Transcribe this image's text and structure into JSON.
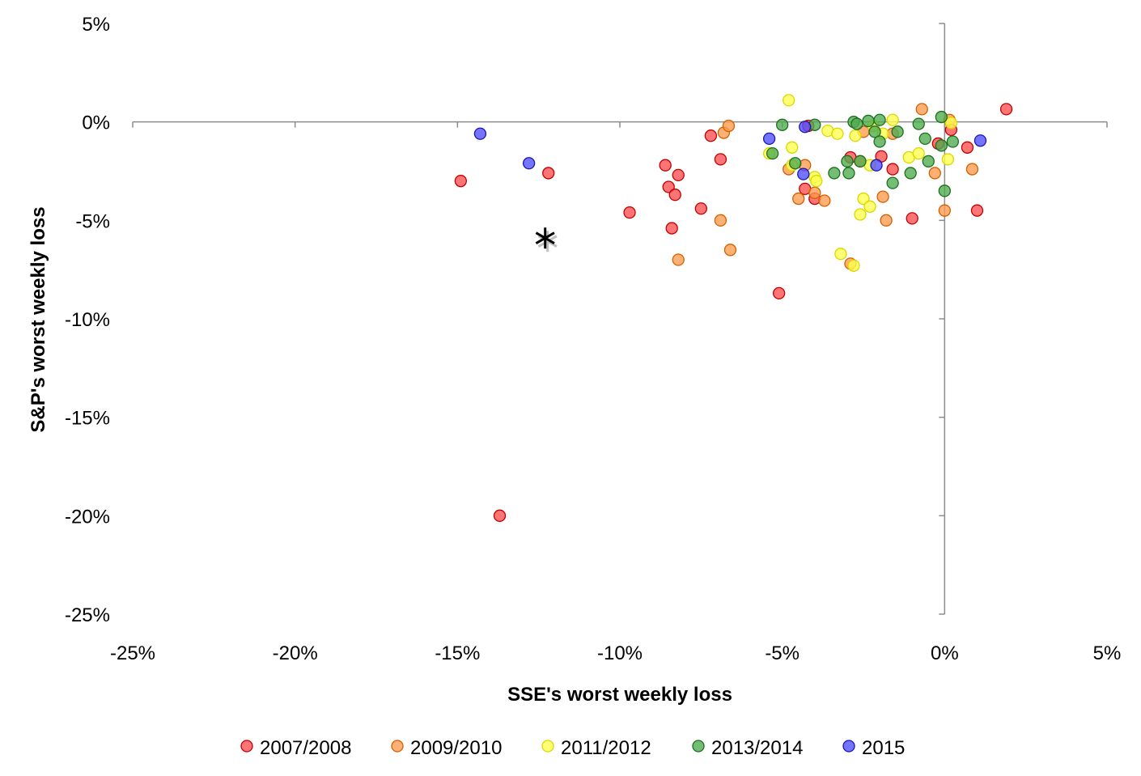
{
  "chart_data": {
    "type": "scatter",
    "title": "",
    "xlabel": "SSE's worst weekly loss",
    "ylabel": "S&P's worst weekly loss",
    "xlim": [
      -25,
      5
    ],
    "ylim": [
      -25,
      5
    ],
    "x_ticks": [
      -25,
      -20,
      -15,
      -10,
      -5,
      0,
      5
    ],
    "y_ticks": [
      5,
      0,
      -5,
      -10,
      -15,
      -20,
      -25
    ],
    "x_tick_labels": [
      "-25%",
      "-20%",
      "-15%",
      "-10%",
      "-5%",
      "0%",
      "5%"
    ],
    "y_tick_labels": [
      "5%",
      "0%",
      "-5%",
      "-10%",
      "-15%",
      "-20%",
      "-25%"
    ],
    "grid": false,
    "legend_position": "bottom",
    "marker": {
      "name": "current-week",
      "x": -12.3,
      "y": -5.9,
      "symbol": "asterisk"
    },
    "series": [
      {
        "name": "2007/2008",
        "color": "#ff4d4d",
        "stroke": "#c00000",
        "points": [
          [
            -14.9,
            -3.0
          ],
          [
            -13.7,
            -20.0
          ],
          [
            -12.2,
            -2.6
          ],
          [
            -9.7,
            -4.6
          ],
          [
            -8.6,
            -2.2
          ],
          [
            -8.5,
            -3.3
          ],
          [
            -8.4,
            -5.4
          ],
          [
            -8.3,
            -3.7
          ],
          [
            -8.2,
            -2.7
          ],
          [
            -7.5,
            -4.4
          ],
          [
            -7.2,
            -0.7
          ],
          [
            -6.9,
            -1.9
          ],
          [
            -5.1,
            -8.7
          ],
          [
            -4.3,
            -3.4
          ],
          [
            -4.2,
            -0.2
          ],
          [
            -4.0,
            -3.9
          ],
          [
            -2.9,
            -1.8
          ],
          [
            -1.95,
            -1.75
          ],
          [
            -1.6,
            -2.4
          ],
          [
            -1.0,
            -4.9
          ],
          [
            -0.2,
            -1.1
          ],
          [
            0.2,
            -0.4
          ],
          [
            0.7,
            -1.3
          ],
          [
            1.0,
            -4.5
          ],
          [
            1.9,
            0.65
          ]
        ]
      },
      {
        "name": "2009/2010",
        "color": "#ff9a4d",
        "stroke": "#d06000",
        "points": [
          [
            -8.2,
            -7.0
          ],
          [
            -6.9,
            -5.0
          ],
          [
            -6.8,
            -0.55
          ],
          [
            -6.65,
            -0.2
          ],
          [
            -6.6,
            -6.5
          ],
          [
            -4.8,
            -2.4
          ],
          [
            -4.5,
            -3.9
          ],
          [
            -4.3,
            -2.2
          ],
          [
            -4.0,
            -3.6
          ],
          [
            -3.7,
            -4.0
          ],
          [
            -2.9,
            -7.2
          ],
          [
            -2.6,
            -2.0
          ],
          [
            -2.5,
            -0.5
          ],
          [
            -1.9,
            -3.8
          ],
          [
            -1.8,
            -5.0
          ],
          [
            -1.6,
            -0.6
          ],
          [
            -0.7,
            0.65
          ],
          [
            -0.3,
            -2.6
          ],
          [
            0.0,
            -4.5
          ],
          [
            0.15,
            0.1
          ],
          [
            0.85,
            -2.4
          ]
        ]
      },
      {
        "name": "2011/2012",
        "color": "#ffff4d",
        "stroke": "#d8d800",
        "points": [
          [
            -4.8,
            1.1
          ],
          [
            -5.4,
            -1.6
          ],
          [
            -4.7,
            -1.3
          ],
          [
            -4.7,
            -2.2
          ],
          [
            -4.0,
            -2.8
          ],
          [
            -3.95,
            -3.0
          ],
          [
            -3.6,
            -0.45
          ],
          [
            -3.3,
            -0.6
          ],
          [
            -3.2,
            -6.7
          ],
          [
            -2.8,
            -7.3
          ],
          [
            -2.75,
            -0.7
          ],
          [
            -2.6,
            -4.7
          ],
          [
            -2.5,
            -3.9
          ],
          [
            -2.3,
            -4.3
          ],
          [
            -2.3,
            -2.2
          ],
          [
            -2.2,
            -0.2
          ],
          [
            -1.9,
            -0.6
          ],
          [
            -1.6,
            0.1
          ],
          [
            -1.1,
            -1.8
          ],
          [
            -0.8,
            -1.6
          ],
          [
            0.1,
            -1.9
          ],
          [
            0.2,
            -0.05
          ]
        ]
      },
      {
        "name": "2013/2014",
        "color": "#4daa4d",
        "stroke": "#1e6e1e",
        "points": [
          [
            -5.3,
            -1.6
          ],
          [
            -5.0,
            -0.15
          ],
          [
            -4.6,
            -2.1
          ],
          [
            -4.0,
            -0.15
          ],
          [
            -3.4,
            -2.6
          ],
          [
            -3.0,
            -2.0
          ],
          [
            -2.95,
            -2.6
          ],
          [
            -2.8,
            0.0
          ],
          [
            -2.7,
            -0.1
          ],
          [
            -2.6,
            -2.0
          ],
          [
            -2.35,
            0.05
          ],
          [
            -2.15,
            -0.5
          ],
          [
            -2.0,
            0.1
          ],
          [
            -2.0,
            -1.0
          ],
          [
            -1.6,
            -3.1
          ],
          [
            -1.45,
            -0.5
          ],
          [
            -1.05,
            -2.6
          ],
          [
            -0.8,
            -0.1
          ],
          [
            -0.6,
            -0.85
          ],
          [
            -0.5,
            -2.0
          ],
          [
            -0.1,
            0.25
          ],
          [
            -0.1,
            -1.2
          ],
          [
            0.0,
            -3.5
          ],
          [
            0.25,
            -1.0
          ]
        ]
      },
      {
        "name": "2015",
        "color": "#4d4dff",
        "stroke": "#1818b0",
        "points": [
          [
            -14.3,
            -0.6
          ],
          [
            -12.8,
            -2.1
          ],
          [
            -5.4,
            -0.85
          ],
          [
            -4.35,
            -2.65
          ],
          [
            -4.3,
            -0.25
          ],
          [
            -2.1,
            -2.2
          ],
          [
            1.1,
            -0.95
          ]
        ]
      }
    ]
  }
}
